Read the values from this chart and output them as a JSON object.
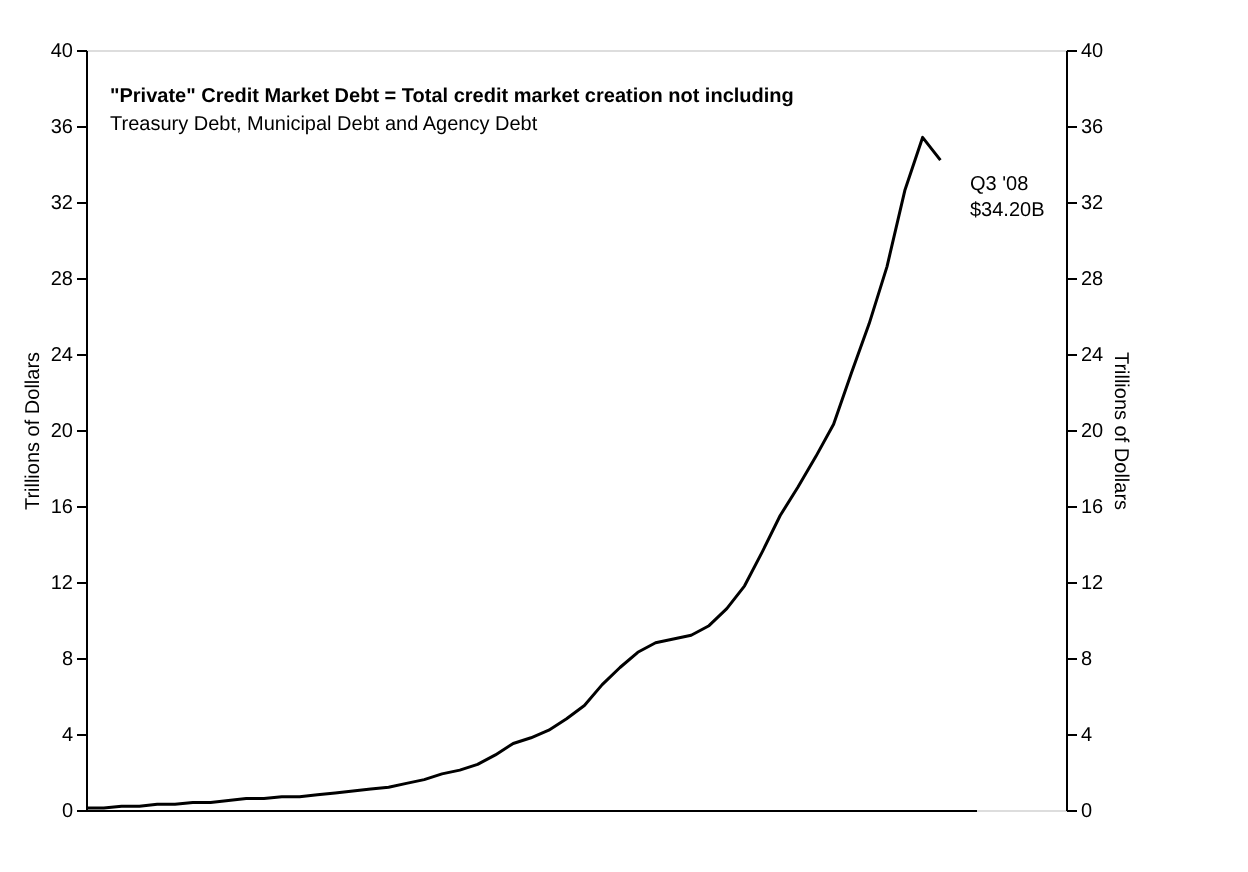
{
  "chart_data": {
    "type": "line",
    "ylabel": "Trillions of Dollars",
    "y2label": "Trillions of Dollars",
    "categories": [
      null,
      null,
      null,
      null,
      null,
      null,
      null,
      null,
      null,
      null,
      null,
      null,
      null,
      null,
      null,
      null,
      null,
      null,
      null,
      null,
      null,
      null,
      null,
      null,
      null,
      null,
      null,
      null,
      null,
      null,
      null,
      null,
      null,
      null,
      null,
      null,
      null,
      null,
      null,
      null,
      null,
      null,
      null,
      null,
      null,
      null,
      null,
      null,
      null,
      null,
      null
    ],
    "series": [
      {
        "color": "#000000",
        "values": [
          0.1,
          0.1,
          0.2,
          0.2,
          0.3,
          0.3,
          0.4,
          0.4,
          0.5,
          0.6,
          0.6,
          0.7,
          0.7,
          0.8,
          0.9,
          1.0,
          1.1,
          1.2,
          1.4,
          1.6,
          1.9,
          2.1,
          2.4,
          2.9,
          3.5,
          3.8,
          4.2,
          4.8,
          5.5,
          6.6,
          7.5,
          8.3,
          8.8,
          9.0,
          9.2,
          9.7,
          10.6,
          11.8,
          13.6,
          15.5,
          17.0,
          18.6,
          20.3,
          23.0,
          25.6,
          28.6,
          32.6,
          35.4,
          34.2,
          null,
          null
        ]
      }
    ],
    "ylim": [
      0,
      40
    ],
    "yticks": [
      0,
      4,
      8,
      12,
      16,
      20,
      24,
      28,
      32,
      36,
      40
    ],
    "y2lim": [
      0,
      40
    ],
    "y2ticks": [
      0,
      4,
      8,
      12,
      16,
      20,
      24,
      28,
      32,
      36,
      40
    ],
    "annotations": [
      "\"Private\" Credit Market Debt = Total credit market creation not including",
      "Treasury Debt, Municipal Debt and Agency Debt",
      "Q3 '08\n$34.20B"
    ],
    "grid": false,
    "marker": "none",
    "line_style": "solid"
  }
}
